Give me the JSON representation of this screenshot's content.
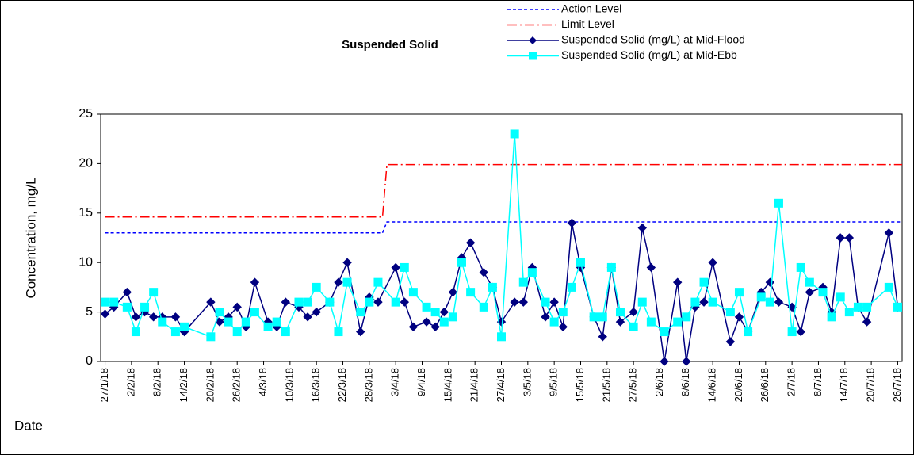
{
  "chart_data": {
    "type": "line",
    "title": "Suspended Solid",
    "y_label": "Concentration, mg/L",
    "x_label": "Date",
    "xlim": [
      "2018-01-26",
      "2018-07-27"
    ],
    "ylim": [
      0,
      25
    ],
    "yticks": [
      0,
      5,
      10,
      15,
      20,
      25
    ],
    "xticks": [
      {
        "value": "2018-01-27",
        "label": "27/1/18"
      },
      {
        "value": "2018-02-02",
        "label": "2/2/18"
      },
      {
        "value": "2018-02-08",
        "label": "8/2/18"
      },
      {
        "value": "2018-02-14",
        "label": "14/2/18"
      },
      {
        "value": "2018-02-20",
        "label": "20/2/18"
      },
      {
        "value": "2018-02-26",
        "label": "26/2/18"
      },
      {
        "value": "2018-03-04",
        "label": "4/3/18"
      },
      {
        "value": "2018-03-10",
        "label": "10/3/18"
      },
      {
        "value": "2018-03-16",
        "label": "16/3/18"
      },
      {
        "value": "2018-03-22",
        "label": "22/3/18"
      },
      {
        "value": "2018-03-28",
        "label": "28/3/18"
      },
      {
        "value": "2018-04-03",
        "label": "3/4/18"
      },
      {
        "value": "2018-04-09",
        "label": "9/4/18"
      },
      {
        "value": "2018-04-15",
        "label": "15/4/18"
      },
      {
        "value": "2018-04-21",
        "label": "21/4/18"
      },
      {
        "value": "2018-04-27",
        "label": "27/4/18"
      },
      {
        "value": "2018-05-03",
        "label": "3/5/18"
      },
      {
        "value": "2018-05-09",
        "label": "9/5/18"
      },
      {
        "value": "2018-05-15",
        "label": "15/5/18"
      },
      {
        "value": "2018-05-21",
        "label": "21/5/18"
      },
      {
        "value": "2018-05-27",
        "label": "27/5/18"
      },
      {
        "value": "2018-06-02",
        "label": "2/6/18"
      },
      {
        "value": "2018-06-08",
        "label": "8/6/18"
      },
      {
        "value": "2018-06-14",
        "label": "14/6/18"
      },
      {
        "value": "2018-06-20",
        "label": "20/6/18"
      },
      {
        "value": "2018-06-26",
        "label": "26/6/18"
      },
      {
        "value": "2018-07-02",
        "label": "2/7/18"
      },
      {
        "value": "2018-07-08",
        "label": "8/7/18"
      },
      {
        "value": "2018-07-14",
        "label": "14/7/18"
      },
      {
        "value": "2018-07-20",
        "label": "20/7/18"
      },
      {
        "value": "2018-07-26",
        "label": "26/7/18"
      }
    ],
    "x": [
      "2018-01-27",
      "2018-01-29",
      "2018-02-01",
      "2018-02-03",
      "2018-02-05",
      "2018-02-07",
      "2018-02-09",
      "2018-02-12",
      "2018-02-14",
      "2018-02-20",
      "2018-02-22",
      "2018-02-24",
      "2018-02-26",
      "2018-02-28",
      "2018-03-02",
      "2018-03-05",
      "2018-03-07",
      "2018-03-09",
      "2018-03-12",
      "2018-03-14",
      "2018-03-16",
      "2018-03-19",
      "2018-03-21",
      "2018-03-23",
      "2018-03-26",
      "2018-03-28",
      "2018-03-30",
      "2018-04-03",
      "2018-04-05",
      "2018-04-07",
      "2018-04-10",
      "2018-04-12",
      "2018-04-14",
      "2018-04-16",
      "2018-04-18",
      "2018-04-20",
      "2018-04-23",
      "2018-04-25",
      "2018-04-27",
      "2018-04-30",
      "2018-05-02",
      "2018-05-04",
      "2018-05-07",
      "2018-05-09",
      "2018-05-11",
      "2018-05-13",
      "2018-05-15",
      "2018-05-18",
      "2018-05-20",
      "2018-05-22",
      "2018-05-24",
      "2018-05-27",
      "2018-05-29",
      "2018-05-31",
      "2018-06-03",
      "2018-06-06",
      "2018-06-08",
      "2018-06-10",
      "2018-06-12",
      "2018-06-14",
      "2018-06-18",
      "2018-06-20",
      "2018-06-22",
      "2018-06-25",
      "2018-06-27",
      "2018-06-29",
      "2018-07-02",
      "2018-07-04",
      "2018-07-06",
      "2018-07-09",
      "2018-07-11",
      "2018-07-13",
      "2018-07-15",
      "2018-07-17",
      "2018-07-19",
      "2018-07-24",
      "2018-07-26"
    ],
    "series": [
      {
        "name": "Action Level",
        "color": "#0000ff",
        "dash": "dashed",
        "marker": "none",
        "x": [
          "2018-01-27",
          "2018-03-31",
          "2018-04-01",
          "2018-07-27"
        ],
        "values": [
          13,
          13,
          14.1,
          14.1
        ]
      },
      {
        "name": "Limit Level",
        "color": "#ff0000",
        "dash": "dashdot",
        "marker": "none",
        "x": [
          "2018-01-27",
          "2018-03-31",
          "2018-04-01",
          "2018-07-27"
        ],
        "values": [
          14.6,
          14.6,
          19.9,
          19.9
        ]
      },
      {
        "name": "Suspended Solid (mg/L) at Mid-Flood",
        "color": "#000080",
        "dash": "solid",
        "marker": "diamond",
        "values": [
          4.8,
          5.5,
          7,
          4.5,
          5,
          4.5,
          4.5,
          4.5,
          3,
          6,
          4,
          4.5,
          5.5,
          3.5,
          8,
          4,
          3.5,
          6,
          5.5,
          4.5,
          5,
          6,
          8,
          10,
          3,
          6.5,
          6,
          9.5,
          6,
          3.5,
          4,
          3.5,
          5,
          7,
          10.5,
          12,
          9,
          7.5,
          4,
          6,
          6,
          9.5,
          4.5,
          6,
          3.5,
          14,
          9.5,
          4.5,
          2.5,
          9.5,
          4,
          5,
          13.5,
          9.5,
          0,
          8,
          0,
          5.5,
          6,
          10,
          2,
          4.5,
          3,
          7,
          8,
          6,
          5.5,
          3,
          7,
          7.5,
          5,
          12.5,
          12.5,
          5.5,
          4,
          13,
          5.5
        ]
      },
      {
        "name": "Suspended Solid (mg/L) at Mid-Ebb",
        "color": "#00ffff",
        "dash": "solid",
        "marker": "square",
        "values": [
          6,
          6,
          5.5,
          3,
          5.5,
          7,
          4,
          3,
          3.5,
          2.5,
          5,
          4,
          3,
          4,
          5,
          3.5,
          4,
          3,
          6,
          6,
          7.5,
          6,
          3,
          8,
          5,
          6,
          8,
          6,
          9.5,
          7,
          5.5,
          5,
          4,
          4.5,
          10,
          7,
          5.5,
          7.5,
          2.5,
          23,
          8,
          9,
          6,
          4,
          5,
          7.5,
          10,
          4.5,
          4.5,
          9.5,
          5,
          3.5,
          6,
          4,
          3,
          4,
          4.5,
          6,
          8,
          6,
          5,
          7,
          3,
          6.5,
          6,
          16,
          3,
          9.5,
          8,
          7,
          4.5,
          6.5,
          5,
          5.5,
          5.5,
          7.5,
          5.5
        ]
      }
    ]
  }
}
